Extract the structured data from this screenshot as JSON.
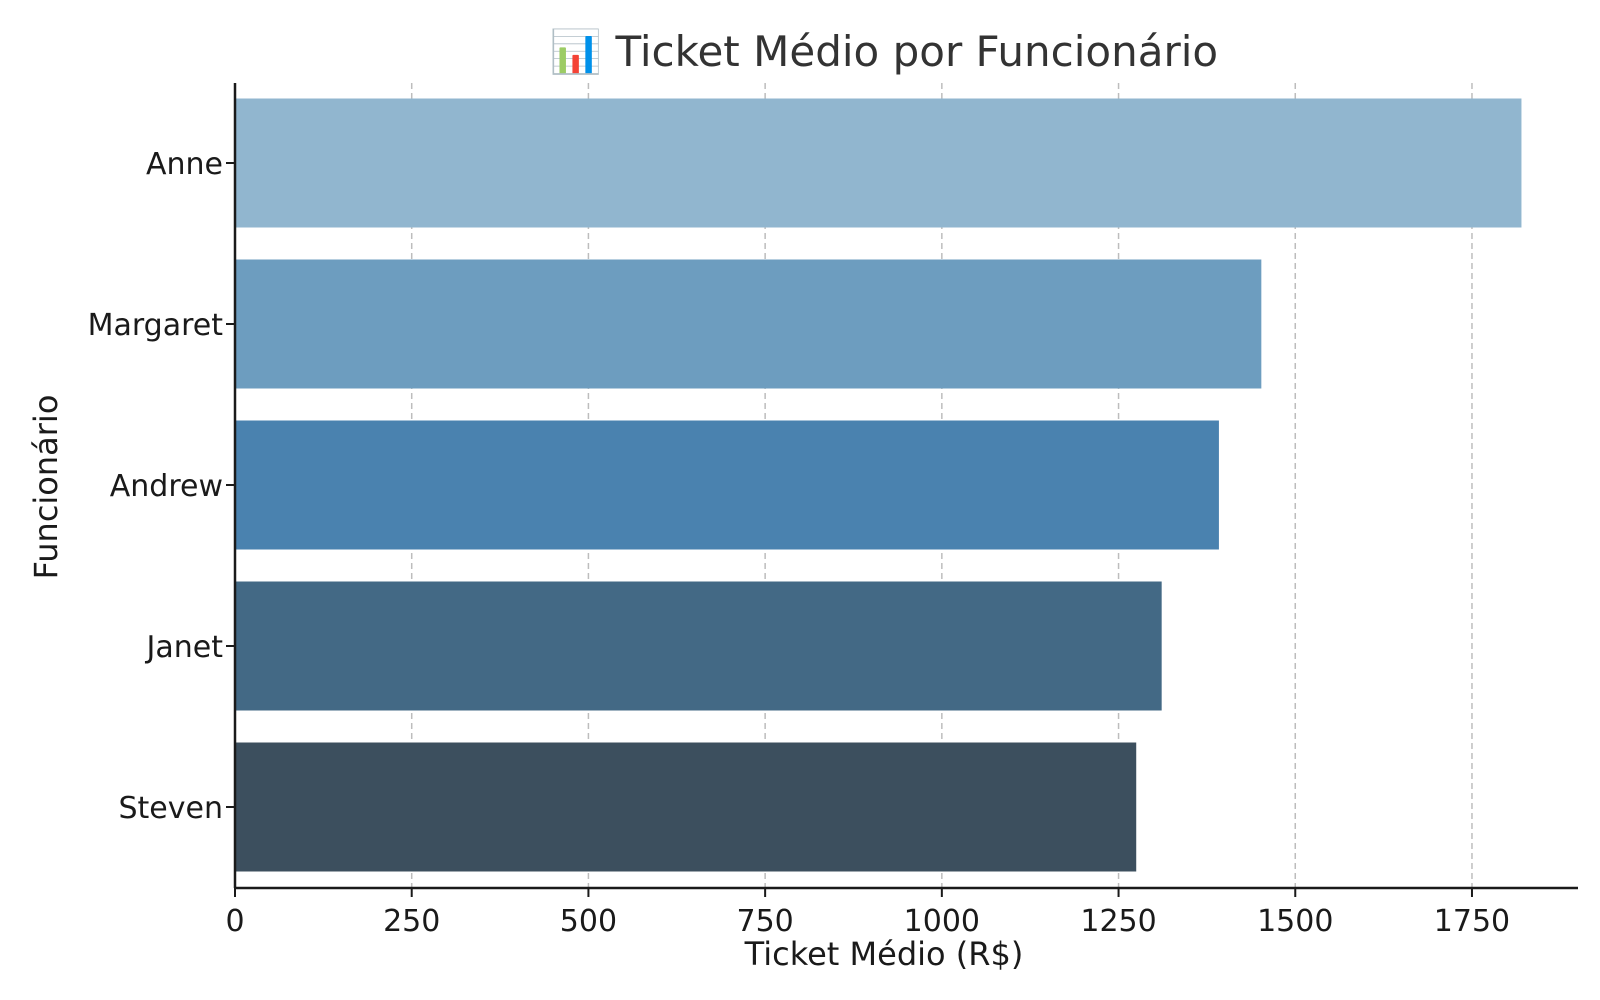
{
  "chart_data": {
    "type": "bar",
    "orientation": "horizontal",
    "title": "📊 Ticket Médio por Funcionário",
    "xlabel": "Ticket Médio (R$)",
    "ylabel": "Funcionário",
    "categories": [
      "Anne",
      "Margaret",
      "Andrew",
      "Janet",
      "Steven"
    ],
    "values": [
      1820,
      1452,
      1392,
      1311,
      1275
    ],
    "colors": [
      "#91b6cf",
      "#6d9dbf",
      "#4a82af",
      "#436985",
      "#3c4f5e"
    ],
    "xlim": [
      0,
      1900
    ],
    "xticks": [
      0,
      250,
      500,
      750,
      1000,
      1250,
      1500,
      1750
    ],
    "grid": "x-dashed",
    "legend": "none"
  }
}
